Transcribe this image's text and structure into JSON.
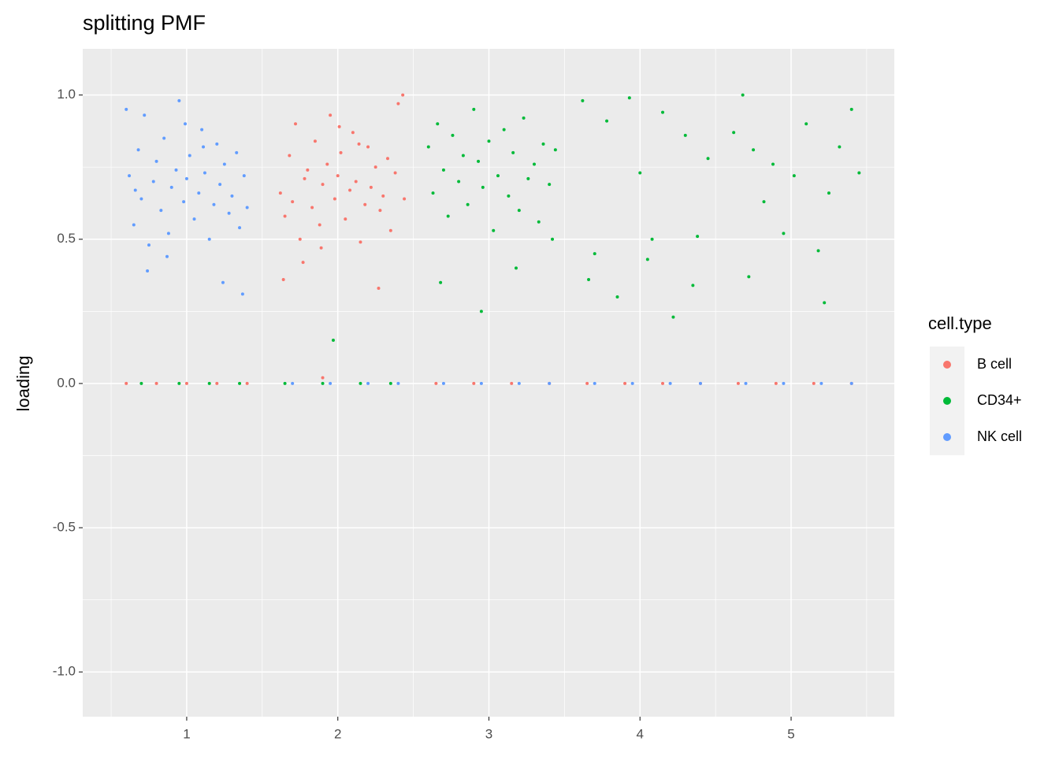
{
  "chart_data": {
    "type": "scatter",
    "title": "splitting PMF",
    "y_label": "loading",
    "legend_title": "cell.type",
    "legend_position": "right",
    "grid": true,
    "background": "#EBEBEB",
    "xlim": [
      0.312,
      5.683
    ],
    "ylim": [
      -1.155,
      1.16
    ],
    "xticks": [
      1,
      2,
      3,
      4,
      5
    ],
    "xminorticks": [
      0.5,
      1.5,
      2.5,
      3.5,
      4.5,
      5.5
    ],
    "yticks": [
      {
        "value": -1,
        "label": "-1.0"
      },
      -0.5,
      {
        "value": 0,
        "label": "0.0"
      },
      0.5,
      {
        "value": 1,
        "label": "1.0"
      }
    ],
    "yminorticks": [
      -0.75,
      -0.25,
      0.25,
      0.75
    ],
    "series": [
      {
        "name": "B cell",
        "color": "#F8766D",
        "x": [
          1.62,
          1.65,
          1.68,
          1.7,
          1.72,
          1.75,
          1.78,
          1.8,
          1.83,
          1.85,
          1.88,
          1.9,
          1.93,
          1.95,
          1.98,
          2.0,
          2.02,
          2.05,
          2.08,
          2.1,
          2.12,
          2.15,
          2.18,
          2.2,
          2.22,
          2.25,
          2.28,
          2.3,
          2.33,
          2.35,
          2.38,
          2.4,
          2.43,
          1.64,
          1.77,
          1.89,
          2.01,
          2.14,
          2.27,
          2.44,
          1.9,
          0.6,
          0.8,
          1.0,
          1.2,
          1.4,
          2.65,
          2.9,
          3.15,
          3.4,
          3.65,
          3.9,
          4.15,
          4.4,
          4.65,
          4.9,
          5.15,
          5.4
        ],
        "y": [
          0.66,
          0.58,
          0.79,
          0.63,
          0.9,
          0.5,
          0.71,
          0.74,
          0.61,
          0.84,
          0.55,
          0.69,
          0.76,
          0.93,
          0.64,
          0.72,
          0.8,
          0.57,
          0.67,
          0.87,
          0.7,
          0.49,
          0.62,
          0.82,
          0.68,
          0.75,
          0.6,
          0.65,
          0.78,
          0.53,
          0.73,
          0.97,
          1.0,
          0.36,
          0.42,
          0.47,
          0.89,
          0.83,
          0.33,
          0.64,
          0.02,
          0,
          0,
          0,
          0,
          0,
          0,
          0,
          0,
          0,
          0,
          0,
          0,
          0,
          0,
          0,
          0,
          0
        ]
      },
      {
        "name": "CD34+",
        "color": "#00BA38",
        "x": [
          2.6,
          2.63,
          2.66,
          2.7,
          2.73,
          2.76,
          2.8,
          2.83,
          2.86,
          2.9,
          2.93,
          2.96,
          3.0,
          3.03,
          3.06,
          3.1,
          3.13,
          3.16,
          3.2,
          3.23,
          3.26,
          3.3,
          3.33,
          3.36,
          3.4,
          3.44,
          2.68,
          2.95,
          3.18,
          3.42,
          3.62,
          3.7,
          3.78,
          3.85,
          3.93,
          4.0,
          4.08,
          4.15,
          4.22,
          4.3,
          4.38,
          4.45,
          3.66,
          4.05,
          4.35,
          4.62,
          4.68,
          4.75,
          4.82,
          4.88,
          4.95,
          5.02,
          5.1,
          5.18,
          5.25,
          5.32,
          5.4,
          5.45,
          4.72,
          5.22,
          0.7,
          0.95,
          1.15,
          1.35,
          1.65,
          1.9,
          2.15,
          2.35,
          1.97
        ],
        "y": [
          0.82,
          0.66,
          0.9,
          0.74,
          0.58,
          0.86,
          0.7,
          0.79,
          0.62,
          0.95,
          0.77,
          0.68,
          0.84,
          0.53,
          0.72,
          0.88,
          0.65,
          0.8,
          0.6,
          0.92,
          0.71,
          0.76,
          0.56,
          0.83,
          0.69,
          0.81,
          0.35,
          0.25,
          0.4,
          0.5,
          0.98,
          0.45,
          0.91,
          0.3,
          0.99,
          0.73,
          0.5,
          0.94,
          0.23,
          0.86,
          0.51,
          0.78,
          0.36,
          0.43,
          0.34,
          0.87,
          1.0,
          0.81,
          0.63,
          0.76,
          0.52,
          0.72,
          0.9,
          0.46,
          0.66,
          0.82,
          0.95,
          0.73,
          0.37,
          0.28,
          0,
          0,
          0,
          0,
          0,
          0,
          0,
          0,
          0.15
        ]
      },
      {
        "name": "NK cell",
        "color": "#619CFF",
        "x": [
          0.62,
          0.65,
          0.68,
          0.7,
          0.72,
          0.75,
          0.78,
          0.8,
          0.83,
          0.85,
          0.88,
          0.9,
          0.93,
          0.95,
          0.98,
          1.0,
          1.02,
          1.05,
          1.08,
          1.1,
          1.12,
          1.15,
          1.18,
          1.2,
          1.22,
          1.25,
          1.28,
          1.3,
          1.33,
          1.35,
          1.38,
          1.4,
          0.6,
          0.74,
          0.87,
          0.99,
          1.11,
          1.24,
          1.37,
          0.66,
          1.7,
          1.95,
          2.2,
          2.4,
          2.7,
          2.95,
          3.2,
          3.4,
          3.7,
          3.95,
          4.2,
          4.4,
          4.7,
          4.95,
          5.2,
          5.4
        ],
        "y": [
          0.72,
          0.55,
          0.81,
          0.64,
          0.93,
          0.48,
          0.7,
          0.77,
          0.6,
          0.85,
          0.52,
          0.68,
          0.74,
          0.98,
          0.63,
          0.71,
          0.79,
          0.57,
          0.66,
          0.88,
          0.73,
          0.5,
          0.62,
          0.83,
          0.69,
          0.76,
          0.59,
          0.65,
          0.8,
          0.54,
          0.72,
          0.61,
          0.95,
          0.39,
          0.44,
          0.9,
          0.82,
          0.35,
          0.31,
          0.67,
          0,
          0,
          0,
          0,
          0,
          0,
          0,
          0,
          0,
          0,
          0,
          0,
          0,
          0,
          0,
          0
        ]
      }
    ]
  }
}
